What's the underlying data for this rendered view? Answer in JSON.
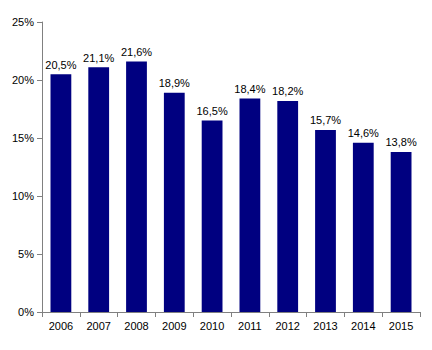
{
  "chart_data": {
    "type": "bar",
    "categories": [
      "2006",
      "2007",
      "2008",
      "2009",
      "2010",
      "2011",
      "2012",
      "2013",
      "2014",
      "2015"
    ],
    "values": [
      20.5,
      21.1,
      21.6,
      18.9,
      16.5,
      18.4,
      18.2,
      15.7,
      14.6,
      13.8
    ],
    "value_labels": [
      "20,5%",
      "21,1%",
      "21,6%",
      "18,9%",
      "16,5%",
      "18,4%",
      "18,2%",
      "15,7%",
      "14,6%",
      "13,8%"
    ],
    "color": "#000080",
    "ylim": [
      0,
      25
    ],
    "yticks": [
      {
        "value": 0,
        "label": "0%"
      },
      {
        "value": 5,
        "label": "5%"
      },
      {
        "value": 10,
        "label": "10%"
      },
      {
        "value": 15,
        "label": "15%"
      },
      {
        "value": 20,
        "label": "20%"
      },
      {
        "value": 25,
        "label": "25%"
      }
    ],
    "grid": false,
    "data_labels": true
  }
}
